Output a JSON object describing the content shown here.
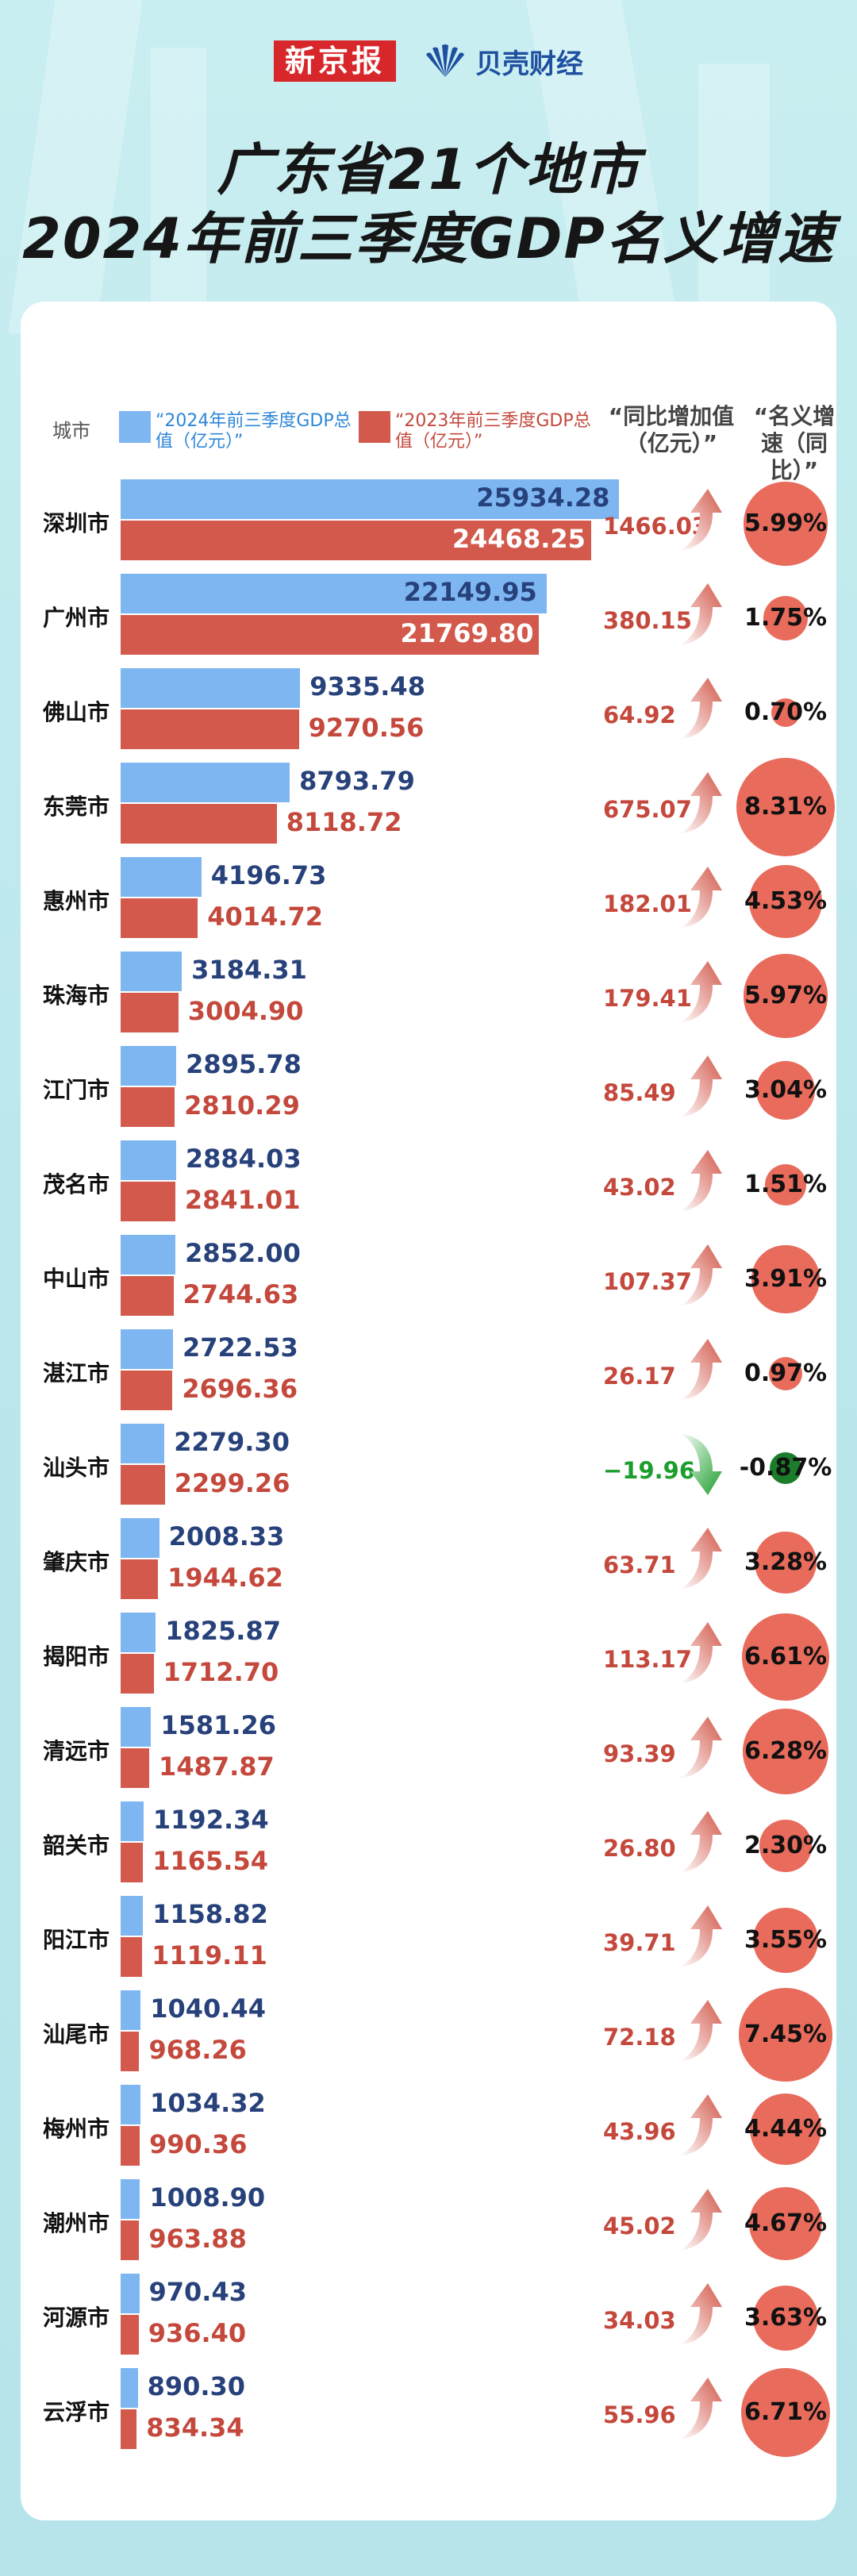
{
  "header": {
    "logo_xjb": "新京报",
    "logo_bk": "贝壳财经",
    "title_line1": "广东省21个地市",
    "title_line2": "2024年前三季度GDP名义增速"
  },
  "colors": {
    "bar_2024": "#7eb6f2",
    "bar_2023": "#d2594b",
    "positive": "#c4483c",
    "negative": "#1b9e2c",
    "circle": "#e86b5c"
  },
  "columns": {
    "city": "城市",
    "legend_2024": "“2024年前三季度GDP总值（亿元）”",
    "legend_2023": "“2023年前三季度GDP总值（亿元）”",
    "increment": "“同比增加值（亿元）”",
    "rate": "“名义增速（同比）”"
  },
  "chart_data": {
    "type": "bar",
    "categories": [
      "深圳市",
      "广州市",
      "佛山市",
      "东莞市",
      "惠州市",
      "珠海市",
      "江门市",
      "茂名市",
      "中山市",
      "湛江市",
      "汕头市",
      "肇庆市",
      "揭阳市",
      "清远市",
      "韶关市",
      "阳江市",
      "汕尾市",
      "梅州市",
      "潮州市",
      "河源市",
      "云浮市"
    ],
    "series": [
      {
        "name": "“2024年前三季度GDP总值（亿元）”",
        "values": [
          25934.28,
          22149.95,
          9335.48,
          8793.79,
          4196.73,
          3184.31,
          2895.78,
          2884.03,
          2852.0,
          2722.53,
          2279.3,
          2008.33,
          1825.87,
          1581.26,
          1192.34,
          1158.82,
          1040.44,
          1034.32,
          1008.9,
          970.43,
          890.3
        ]
      },
      {
        "name": "“2023年前三季度GDP总值（亿元）”",
        "values": [
          24468.25,
          21769.8,
          9270.56,
          8118.72,
          4014.72,
          3004.9,
          2810.29,
          2841.01,
          2744.63,
          2696.36,
          2299.26,
          1944.62,
          1712.7,
          1487.87,
          1165.54,
          1119.11,
          968.26,
          990.36,
          963.88,
          936.4,
          834.34
        ]
      }
    ],
    "labels_2024": [
      "25934.28",
      "22149.95",
      "9335.48",
      "8793.79",
      "4196.73",
      "3184.31",
      "2895.78",
      "2884.03",
      "2852.00",
      "2722.53",
      "2279.30",
      "2008.33",
      "1825.87",
      "1581.26",
      "1192.34",
      "1158.82",
      "1040.44",
      "1034.32",
      "1008.90",
      "970.43",
      "890.30"
    ],
    "labels_2023": [
      "24468.25",
      "21769.80",
      "9270.56",
      "8118.72",
      "4014.72",
      "3004.90",
      "2810.29",
      "2841.01",
      "2744.63",
      "2696.36",
      "2299.26",
      "1944.62",
      "1712.70",
      "1487.87",
      "1165.54",
      "1119.11",
      "968.26",
      "990.36",
      "963.88",
      "936.40",
      "834.34"
    ],
    "increment_labels": [
      "1466.03",
      "380.15",
      "64.92",
      "675.07",
      "182.01",
      "179.41",
      "85.49",
      "43.02",
      "107.37",
      "26.17",
      "−19.96",
      "63.71",
      "113.17",
      "93.39",
      "26.80",
      "39.71",
      "72.18",
      "43.96",
      "45.02",
      "34.03",
      "55.96"
    ],
    "rate_values": [
      5.99,
      1.75,
      0.7,
      8.31,
      4.53,
      5.97,
      3.04,
      1.51,
      3.91,
      0.97,
      -0.87,
      3.28,
      6.61,
      6.28,
      2.3,
      3.55,
      7.45,
      4.44,
      4.67,
      3.63,
      6.71
    ],
    "rate_labels": [
      "5.99%",
      "1.75%",
      "0.70%",
      "8.31%",
      "4.53%",
      "5.97%",
      "3.04%",
      "1.51%",
      "3.91%",
      "0.97%",
      "-0.87%",
      "3.28%",
      "6.61%",
      "6.28%",
      "2.30%",
      "3.55%",
      "7.45%",
      "4.44%",
      "4.67%",
      "3.63%",
      "6.71%"
    ],
    "orientation": "horizontal",
    "grid": false
  }
}
